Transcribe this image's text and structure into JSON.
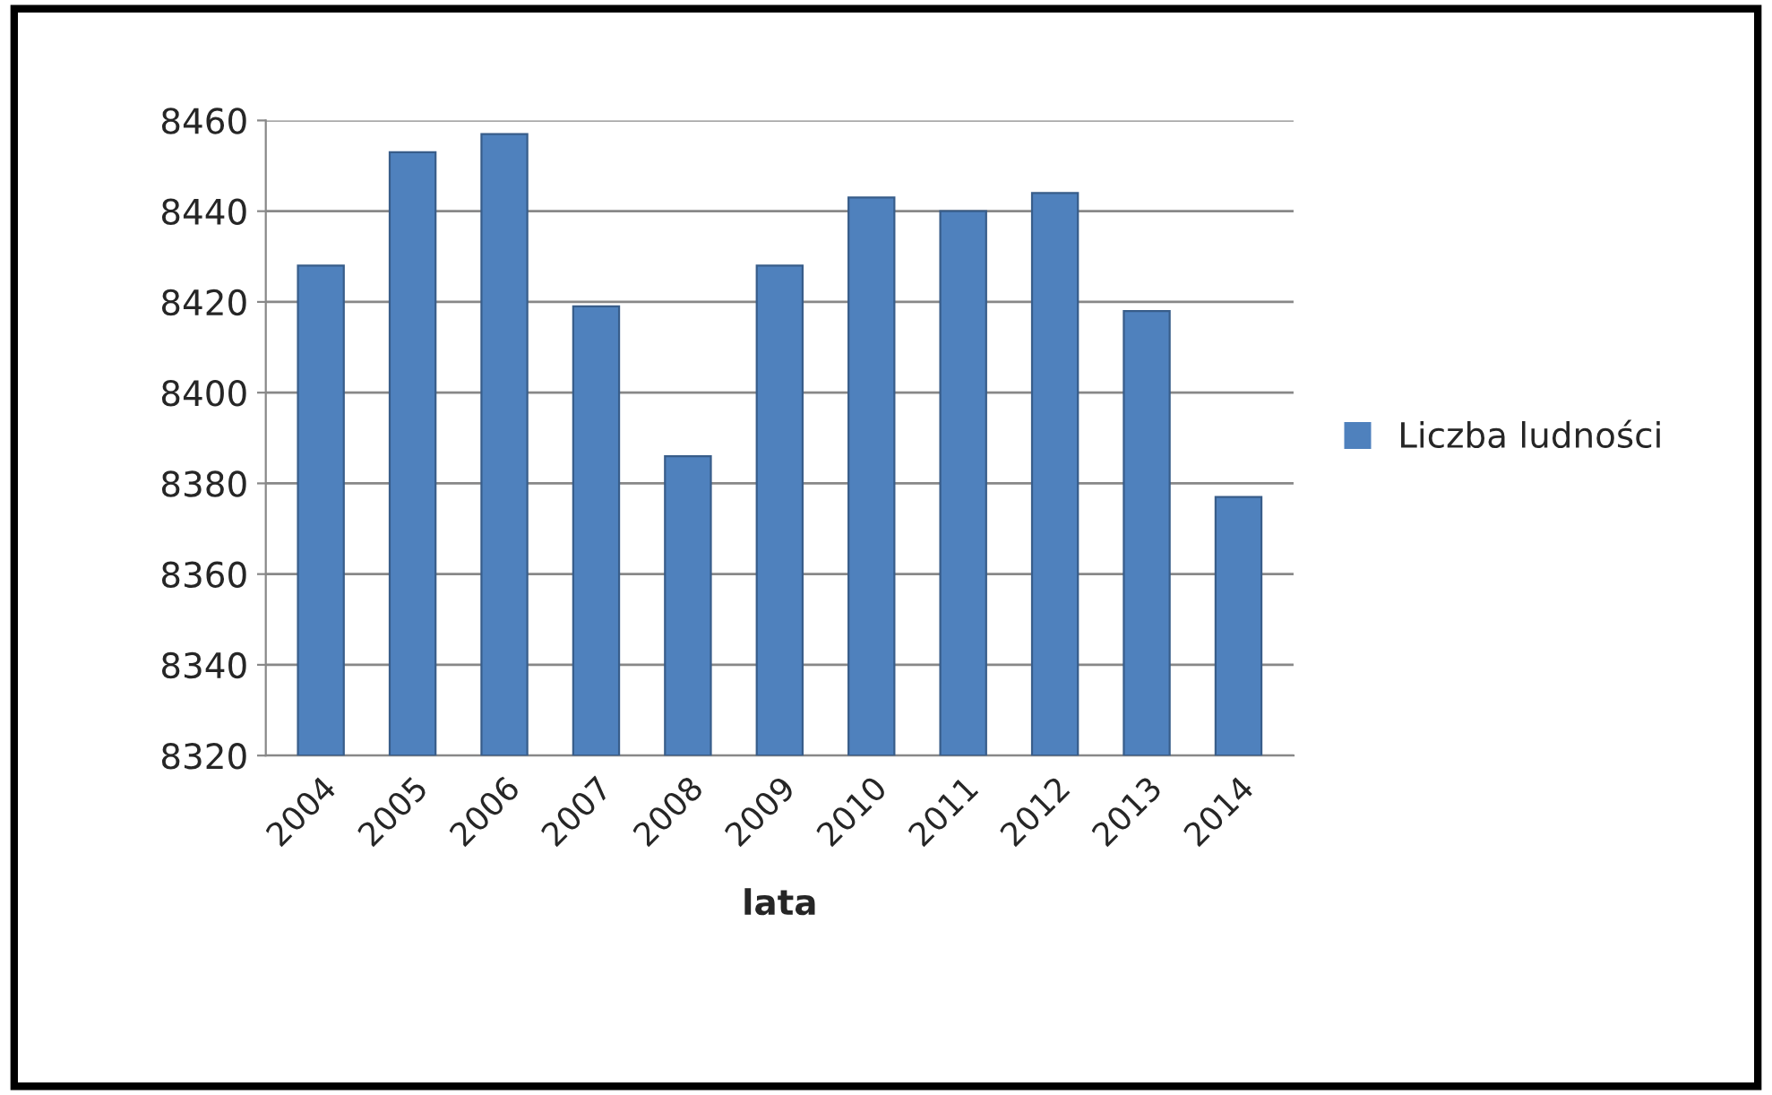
{
  "chart_data": {
    "type": "bar",
    "xlabel": "lata",
    "categories": [
      "2004",
      "2005",
      "2006",
      "2007",
      "2008",
      "2009",
      "2010",
      "2011",
      "2012",
      "2013",
      "2014"
    ],
    "series": [
      {
        "name": "Liczba ludności",
        "color": "#4f81bd",
        "values": [
          8428,
          8453,
          8457,
          8419,
          8386,
          8428,
          8443,
          8440,
          8444,
          8418,
          8377
        ]
      }
    ],
    "ylim": [
      8320,
      8460
    ],
    "yticks": [
      8320,
      8340,
      8360,
      8380,
      8400,
      8420,
      8440,
      8460
    ],
    "grid": "y",
    "legend": "right"
  }
}
